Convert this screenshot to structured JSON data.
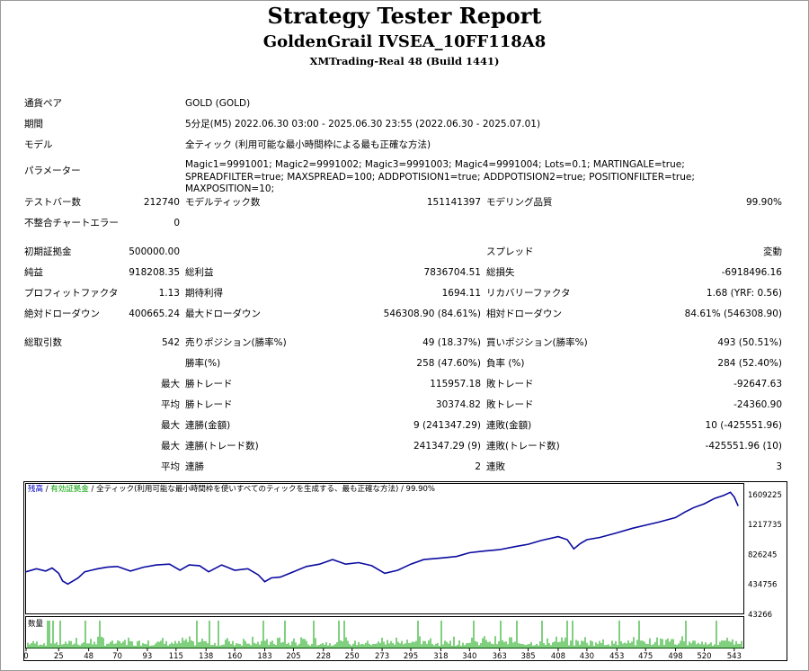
{
  "header": {
    "title": "Strategy Tester Report",
    "ea_name": "GoldenGrail IVSEA_10FF118A8",
    "server": "XMTrading-Real 48 (Build 1441)"
  },
  "settings": {
    "symbol_label": "通貨ペア",
    "symbol_value": "GOLD (GOLD)",
    "period_label": "期間",
    "period_value": "5分足(M5) 2022.06.30 03:00 - 2025.06.30 23:55 (2022.06.30 - 2025.07.01)",
    "model_label": "モデル",
    "model_value": "全ティック (利用可能な最小時間枠による最も正確な方法)",
    "params_label": "パラメーター",
    "params_value": "Magic1=9991001; Magic2=9991002; Magic3=9991003; Magic4=9991004; Lots=0.1; MARTINGALE=true; SPREADFILTER=true; MAXSPREAD=100; ADDPOTISION1=true; ADDPOTISION2=true; POSITIONFILTER=true; MAXPOSITION=10;"
  },
  "stats": {
    "bars_label": "テストバー数",
    "bars_value": "212740",
    "ticks_label": "モデルティック数",
    "ticks_value": "151141397",
    "quality_label": "モデリング品質",
    "quality_value": "99.90%",
    "errors_label": "不整合チャートエラー",
    "errors_value": "0",
    "deposit_label": "初期証拠金",
    "deposit_value": "500000.00",
    "spread_label": "スプレッド",
    "spread_value": "変動",
    "net_label": "純益",
    "net_value": "918208.35",
    "gross_profit_label": "総利益",
    "gross_profit_value": "7836704.51",
    "gross_loss_label": "総損失",
    "gross_loss_value": "-6918496.16",
    "pf_label": "プロフィットファクタ",
    "pf_value": "1.13",
    "expected_label": "期待利得",
    "expected_value": "1694.11",
    "recovery_label": "リカバリーファクタ",
    "recovery_value": "1.68 (YRF: 0.56)",
    "abs_dd_label": "絶対ドローダウン",
    "abs_dd_value": "400665.24",
    "max_dd_label": "最大ドローダウン",
    "max_dd_value": "546308.90 (84.61%)",
    "rel_dd_label": "相対ドローダウン",
    "rel_dd_value": "84.61% (546308.90)"
  },
  "trades": {
    "total_label": "総取引数",
    "total_value": "542",
    "short_label": "売りポジション(勝率%)",
    "short_value": "49 (18.37%)",
    "long_label": "買いポジション(勝率%)",
    "long_value": "493 (50.51%)",
    "win_label": "勝率(%)",
    "win_value": "258 (47.60%)",
    "loss_label": "負率 (%)",
    "loss_value": "284 (52.40%)",
    "max_prefix": "最大",
    "avg_prefix": "平均",
    "max_win_label": "勝トレード",
    "max_win_value": "115957.18",
    "max_loss_label": "敗トレード",
    "max_loss_value": "-92647.63",
    "avg_win_label": "勝トレード",
    "avg_win_value": "30374.82",
    "avg_loss_label": "敗トレード",
    "avg_loss_value": "-24360.90",
    "cons_win_label": "連勝(金額)",
    "cons_win_value": "9 (241347.29)",
    "cons_loss_label": "連敗(金額)",
    "cons_loss_value": "10 (-425551.96)",
    "cons_profit_label": "連勝(トレード数)",
    "cons_profit_value": "241347.29 (9)",
    "cons_lossamt_label": "連敗(トレード数)",
    "cons_lossamt_value": "-425551.96 (10)",
    "avg_cons_win_label": "連勝",
    "avg_cons_win_value": "2",
    "avg_cons_loss_label": "連敗",
    "avg_cons_loss_value": "3"
  },
  "chart_data": {
    "type": "line",
    "legend": {
      "balance": "残高",
      "sep1": " / ",
      "equity": "有効証拠金",
      "sep2": " / ",
      "model": "全ティック(利用可能な最小時間枠を使いすべてのティックを生成する、最も正確な方法)",
      "quality": " / 99.90%"
    },
    "volume_label": "数量",
    "y_ticks": [
      1609225,
      1217735,
      826245,
      434756,
      43266
    ],
    "x_ticks": [
      0,
      25,
      48,
      70,
      93,
      115,
      138,
      160,
      183,
      205,
      228,
      250,
      273,
      295,
      318,
      340,
      363,
      385,
      408,
      430,
      453,
      475,
      498,
      520,
      543
    ],
    "ylim": [
      43266,
      1750000
    ],
    "xlim": [
      0,
      550
    ],
    "balance_series": {
      "name": "残高",
      "x": [
        0,
        8,
        15,
        20,
        25,
        28,
        32,
        36,
        40,
        45,
        50,
        55,
        62,
        70,
        80,
        90,
        100,
        110,
        118,
        125,
        133,
        140,
        150,
        160,
        170,
        178,
        183,
        188,
        195,
        205,
        215,
        225,
        235,
        245,
        255,
        265,
        275,
        285,
        295,
        305,
        318,
        330,
        340,
        350,
        363,
        375,
        385,
        395,
        408,
        415,
        420,
        425,
        430,
        440,
        453,
        465,
        475,
        485,
        498,
        505,
        512,
        520,
        528,
        535,
        540,
        543,
        546
      ],
      "y": [
        600000,
        640000,
        610000,
        650000,
        580000,
        480000,
        440000,
        480000,
        520000,
        600000,
        620000,
        640000,
        660000,
        670000,
        610000,
        660000,
        690000,
        700000,
        620000,
        690000,
        680000,
        600000,
        690000,
        620000,
        640000,
        560000,
        470000,
        520000,
        530000,
        600000,
        670000,
        700000,
        760000,
        700000,
        720000,
        680000,
        580000,
        620000,
        700000,
        760000,
        780000,
        800000,
        850000,
        870000,
        890000,
        930000,
        960000,
        1010000,
        1060000,
        1020000,
        900000,
        970000,
        1020000,
        1050000,
        1110000,
        1170000,
        1210000,
        1250000,
        1310000,
        1380000,
        1440000,
        1490000,
        1560000,
        1600000,
        1640000,
        1580000,
        1460000
      ]
    }
  }
}
